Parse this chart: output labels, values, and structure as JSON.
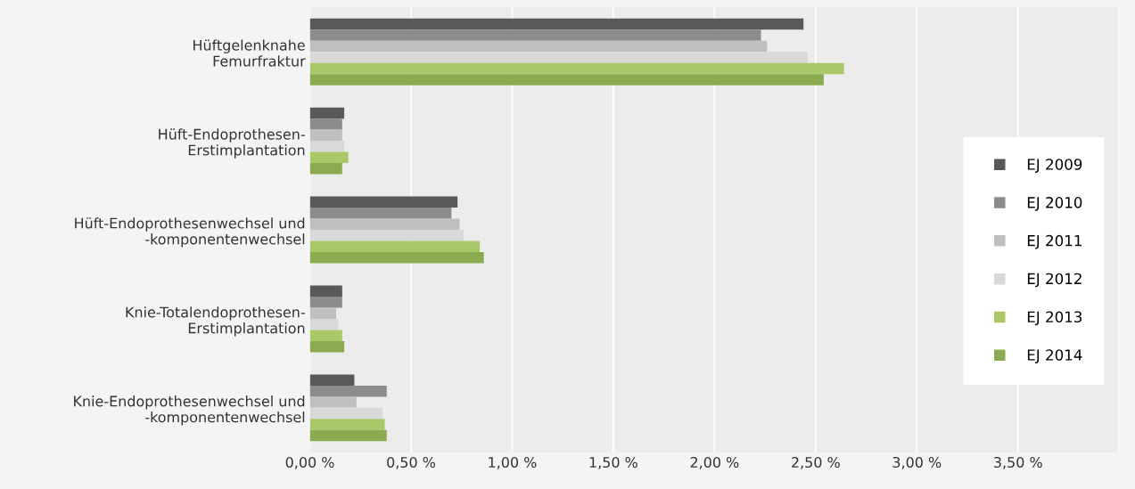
{
  "chart_data": {
    "type": "bar",
    "orientation": "horizontal",
    "categories": [
      "Hüftgelenknahe\nFemurfraktur",
      "Hüft-Endoprothesen-\nErstimplantation",
      "Hüft-Endoprothesenwechsel und\n-komponentenwechsel",
      "Knie-Totalendoprothesen-\nErstimplantation",
      "Knie-Endoprothesenwechsel und\n-komponentenwechsel"
    ],
    "series": [
      {
        "name": "EJ 2009",
        "color": "#595959",
        "values": [
          2.44,
          0.17,
          0.73,
          0.16,
          0.22
        ]
      },
      {
        "name": "EJ 2010",
        "color": "#8c8c8c",
        "values": [
          2.23,
          0.16,
          0.7,
          0.16,
          0.38
        ]
      },
      {
        "name": "EJ 2011",
        "color": "#bfbfbf",
        "values": [
          2.26,
          0.16,
          0.74,
          0.13,
          0.23
        ]
      },
      {
        "name": "EJ 2012",
        "color": "#d9d9d9",
        "values": [
          2.46,
          0.17,
          0.76,
          0.14,
          0.36
        ]
      },
      {
        "name": "EJ 2013",
        "color": "#a9c868",
        "values": [
          2.64,
          0.19,
          0.84,
          0.16,
          0.37
        ]
      },
      {
        "name": "EJ 2014",
        "color": "#8aab50",
        "values": [
          2.54,
          0.16,
          0.86,
          0.17,
          0.38
        ]
      }
    ],
    "xlim": [
      0,
      4
    ],
    "xticks": [
      {
        "value": 0,
        "label": "0,00 %"
      },
      {
        "value": 0.5,
        "label": "0,50 %"
      },
      {
        "value": 1,
        "label": "1,00 %"
      },
      {
        "value": 1.5,
        "label": "1,50 %"
      },
      {
        "value": 2,
        "label": "2,00 %"
      },
      {
        "value": 2.5,
        "label": "2,50 %"
      },
      {
        "value": 3,
        "label": "3,00 %"
      },
      {
        "value": 3.5,
        "label": "3,50 %"
      },
      {
        "value": 4,
        "label": null
      }
    ],
    "grid": "x",
    "legend": "right"
  }
}
